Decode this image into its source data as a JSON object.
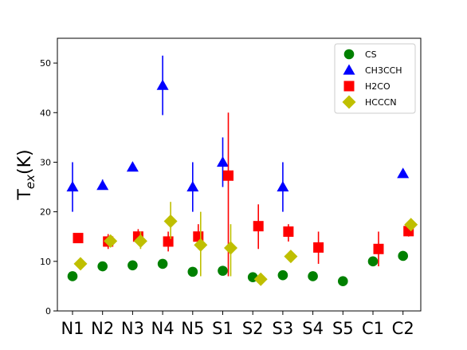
{
  "chart_data": {
    "type": "scatter",
    "categories": [
      "N1",
      "N2",
      "N3",
      "N4",
      "N5",
      "S1",
      "S2",
      "S3",
      "S4",
      "S5",
      "C1",
      "C2"
    ],
    "ylabel_main": "T",
    "ylabel_sub": "ex",
    "ylabel_unit": "(K)",
    "ylim": [
      0,
      55
    ],
    "yticks": [
      0,
      10,
      20,
      30,
      40,
      50
    ],
    "grid": false,
    "legend_position": "top-right",
    "series": [
      {
        "name": "CS",
        "marker": "circle",
        "color": "#008000",
        "points": [
          {
            "cat": "N1",
            "y": 7
          },
          {
            "cat": "N2",
            "y": 9
          },
          {
            "cat": "N3",
            "y": 9.2
          },
          {
            "cat": "N4",
            "y": 9.5
          },
          {
            "cat": "N5",
            "y": 7.9
          },
          {
            "cat": "S1",
            "y": 8.1
          },
          {
            "cat": "S2",
            "y": 6.8
          },
          {
            "cat": "S3",
            "y": 7.2
          },
          {
            "cat": "S4",
            "y": 7
          },
          {
            "cat": "S5",
            "y": 6
          },
          {
            "cat": "C1",
            "y": 10
          },
          {
            "cat": "C2",
            "y": 11.1
          }
        ]
      },
      {
        "name": "CH3CCH",
        "marker": "triangle",
        "color": "#0000ff",
        "points": [
          {
            "cat": "N1",
            "y": 25,
            "ylo": 20,
            "yhi": 30
          },
          {
            "cat": "N2",
            "y": 25.3,
            "ylo": 24.5,
            "yhi": 26.5
          },
          {
            "cat": "N3",
            "y": 29
          },
          {
            "cat": "N4",
            "y": 45.5,
            "ylo": 39.5,
            "yhi": 51.5
          },
          {
            "cat": "N5",
            "y": 25,
            "ylo": 20,
            "yhi": 30
          },
          {
            "cat": "S1",
            "y": 30,
            "ylo": 25,
            "yhi": 35
          },
          {
            "cat": "S3",
            "y": 25,
            "ylo": 20,
            "yhi": 30
          },
          {
            "cat": "C2",
            "y": 27.7
          }
        ]
      },
      {
        "name": "H2CO",
        "marker": "square",
        "color": "#ff0000",
        "points": [
          {
            "cat": "N1",
            "y": 14.7
          },
          {
            "cat": "N2",
            "y": 14,
            "ylo": 12.5,
            "yhi": 15.5
          },
          {
            "cat": "N3",
            "y": 15,
            "ylo": 13.5,
            "yhi": 16.5
          },
          {
            "cat": "N4",
            "y": 14,
            "ylo": 12,
            "yhi": 16
          },
          {
            "cat": "N5",
            "y": 15,
            "ylo": 12.5,
            "yhi": 17.5
          },
          {
            "cat": "S1",
            "y": 27.3,
            "ylo": 7,
            "yhi": 40
          },
          {
            "cat": "S2",
            "y": 17.1,
            "ylo": 12.5,
            "yhi": 21.5
          },
          {
            "cat": "S3",
            "y": 16,
            "ylo": 14,
            "yhi": 17.5
          },
          {
            "cat": "S4",
            "y": 12.8,
            "ylo": 9.5,
            "yhi": 16
          },
          {
            "cat": "C1",
            "y": 12.5,
            "ylo": 9,
            "yhi": 16
          },
          {
            "cat": "C2",
            "y": 16.1,
            "ylo": 15,
            "yhi": 17.5
          }
        ]
      },
      {
        "name": "HCCCN",
        "marker": "diamond",
        "color": "#bfbf00",
        "points": [
          {
            "cat": "N1",
            "y": 9.5
          },
          {
            "cat": "N2",
            "y": 14.1
          },
          {
            "cat": "N3",
            "y": 14.1,
            "ylo": 12.5,
            "yhi": 16
          },
          {
            "cat": "N4",
            "y": 18.1,
            "ylo": 14.5,
            "yhi": 22
          },
          {
            "cat": "N5",
            "y": 13.3,
            "ylo": 7,
            "yhi": 20
          },
          {
            "cat": "S1",
            "y": 12.7,
            "ylo": 7,
            "yhi": 17.5
          },
          {
            "cat": "S2",
            "y": 6.4
          },
          {
            "cat": "S3",
            "y": 11
          },
          {
            "cat": "C2",
            "y": 17.4
          }
        ]
      }
    ]
  }
}
